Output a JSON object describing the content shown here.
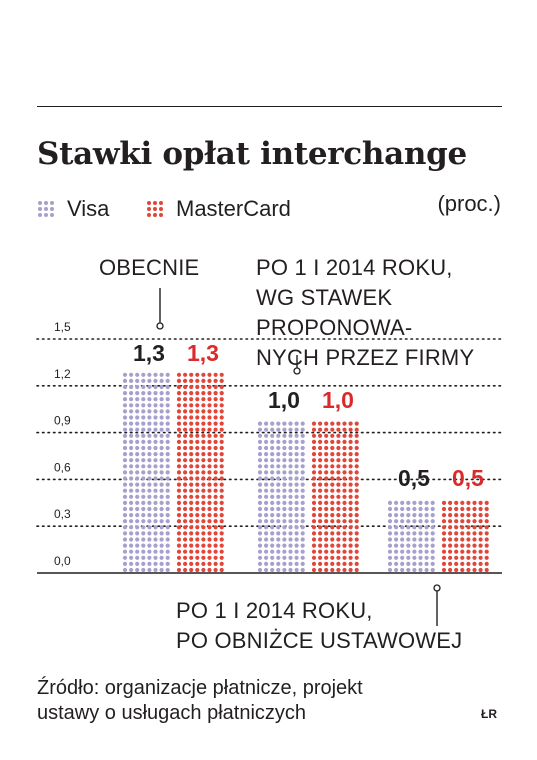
{
  "title": "Stawki opłat interchange",
  "unit": "(proc.)",
  "colors": {
    "visa": "#a6a1cc",
    "mastercard": "#e0473a",
    "mastercard_label": "#d92b2b",
    "text": "#231f20"
  },
  "legend": [
    {
      "name": "Visa",
      "color": "#a6a1cc"
    },
    {
      "name": "MasterCard",
      "color": "#e0473a"
    }
  ],
  "annotations": {
    "current": "OBECNIE",
    "proposed": [
      "PO 1 I 2014 ROKU,",
      "WG STAWEK",
      "PROPONOWA-",
      "NYCH PRZEZ FIRMY"
    ],
    "statutory": [
      "PO 1 I 2014 ROKU,",
      "PO OBNIŻCE USTAWOWEJ"
    ]
  },
  "source": [
    "Źródło: organizacje płatnicze, projekt",
    "ustawy o usługach płatniczych"
  ],
  "author": "ŁR",
  "chart_data": {
    "type": "bar",
    "categories": [
      "OBECNIE",
      "PO 1 I 2014 ROKU, WG STAWEK PROPONOWANYCH PRZEZ FIRMY",
      "PO 1 I 2014 ROKU, PO OBNIŻCE USTAWOWEJ"
    ],
    "series": [
      {
        "name": "Visa",
        "values": [
          1.3,
          1.0,
          0.5
        ],
        "labels": [
          "1,3",
          "1,0",
          "0,5"
        ]
      },
      {
        "name": "MasterCard",
        "values": [
          1.3,
          1.0,
          0.5
        ],
        "labels": [
          "1,3",
          "1,0",
          "0,5"
        ]
      }
    ],
    "yticks": [
      0.0,
      0.3,
      0.6,
      0.9,
      1.2,
      1.5
    ],
    "ytick_labels": [
      "0,0",
      "0,3",
      "0,6",
      "0,9",
      "1,2",
      "1,5"
    ],
    "ylim": [
      0,
      1.5
    ],
    "grid": "dotted",
    "legend": "top-left"
  }
}
